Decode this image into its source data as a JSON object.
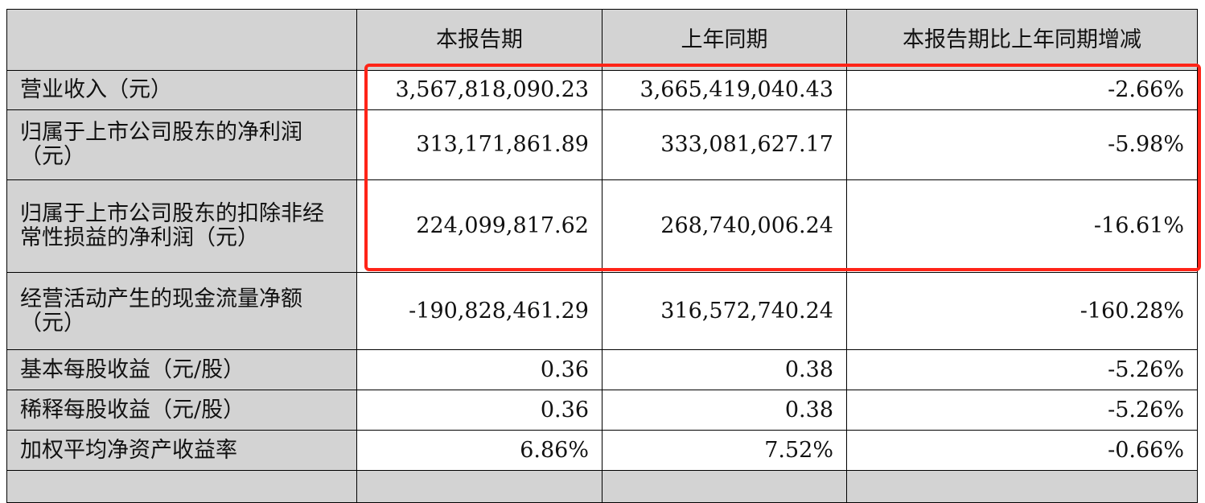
{
  "table": {
    "headers": [
      "",
      "本报告期",
      "上年同期",
      "本报告期比上年同期增减"
    ],
    "rows": [
      {
        "label": "营业收入（元）",
        "current": "3,567,818,090.23",
        "prior": "3,665,419,040.43",
        "change": "-2.66%"
      },
      {
        "label": "归属于上市公司股东的净利润（元）",
        "current": "313,171,861.89",
        "prior": "333,081,627.17",
        "change": "-5.98%"
      },
      {
        "label": "归属于上市公司股东的扣除非经常性损益的净利润（元）",
        "current": "224,099,817.62",
        "prior": "268,740,006.24",
        "change": "-16.61%"
      },
      {
        "label": "经营活动产生的现金流量净额（元）",
        "current": "-190,828,461.29",
        "prior": "316,572,740.24",
        "change": "-160.28%"
      },
      {
        "label": "基本每股收益（元/股）",
        "current": "0.36",
        "prior": "0.38",
        "change": "-5.26%"
      },
      {
        "label": "稀释每股收益（元/股）",
        "current": "0.36",
        "prior": "0.38",
        "change": "-5.26%"
      },
      {
        "label": "加权平均净资产收益率",
        "current": "6.86%",
        "prior": "7.52%",
        "change": "-0.66%"
      }
    ]
  },
  "highlight": {
    "color": "#ff2418"
  }
}
